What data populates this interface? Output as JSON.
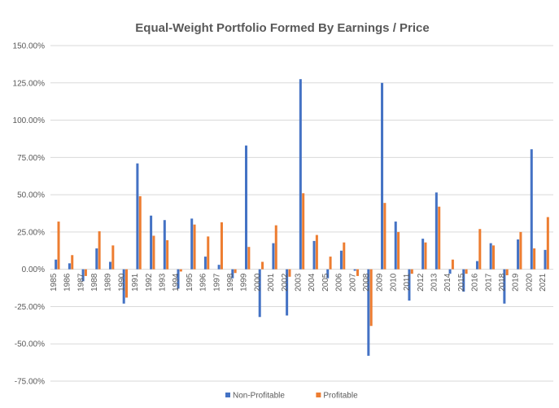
{
  "chart_data": {
    "type": "bar",
    "title": "Equal-Weight Portfolio Formed By Earnings / Price",
    "xlabel": "",
    "ylabel": "",
    "ylim": [
      -75,
      150
    ],
    "yticks": [
      150,
      125,
      100,
      75,
      50,
      25,
      0,
      -25,
      -50,
      -75
    ],
    "ytick_labels": [
      "150.00%",
      "125.00%",
      "100.00%",
      "75.00%",
      "50.00%",
      "25.00%",
      "0.00%",
      "-25.00%",
      "-50.00%",
      "-75.00%"
    ],
    "grid": true,
    "legend_position": "bottom",
    "categories": [
      "1985",
      "1986",
      "1987",
      "1988",
      "1989",
      "1990",
      "1991",
      "1992",
      "1993",
      "1994",
      "1995",
      "1996",
      "1997",
      "1998",
      "1999",
      "2000",
      "2001",
      "2002",
      "2003",
      "2004",
      "2005",
      "2006",
      "2007",
      "2008",
      "2009",
      "2010",
      "2011",
      "2012",
      "2013",
      "2014",
      "2015",
      "2016",
      "2017",
      "2018",
      "2019",
      "2020",
      "2021"
    ],
    "series": [
      {
        "name": "Non-Profitable",
        "color": "#4472C4",
        "values": [
          6.5,
          4,
          -8,
          14,
          5,
          -23,
          71,
          36,
          33,
          -13,
          34,
          8.5,
          3,
          -6,
          83,
          -32,
          17.5,
          -31,
          127.5,
          19,
          -6,
          12.5,
          -1,
          -58,
          125,
          32,
          -21,
          20.5,
          51.5,
          -3,
          -15,
          5.5,
          17.5,
          -23,
          20,
          80.5,
          13
        ]
      },
      {
        "name": "Profitable",
        "color": "#ED7D31",
        "values": [
          32,
          9.5,
          -4.5,
          25.5,
          16,
          -19,
          49,
          22.5,
          19.5,
          -1.5,
          30,
          22,
          31.5,
          -2.5,
          15,
          5,
          29.5,
          -5,
          51,
          23,
          8.5,
          18,
          -4.5,
          -38,
          44.5,
          25,
          -3,
          18,
          42,
          6.5,
          -3,
          27,
          16,
          -4,
          25,
          14,
          35
        ]
      }
    ]
  }
}
